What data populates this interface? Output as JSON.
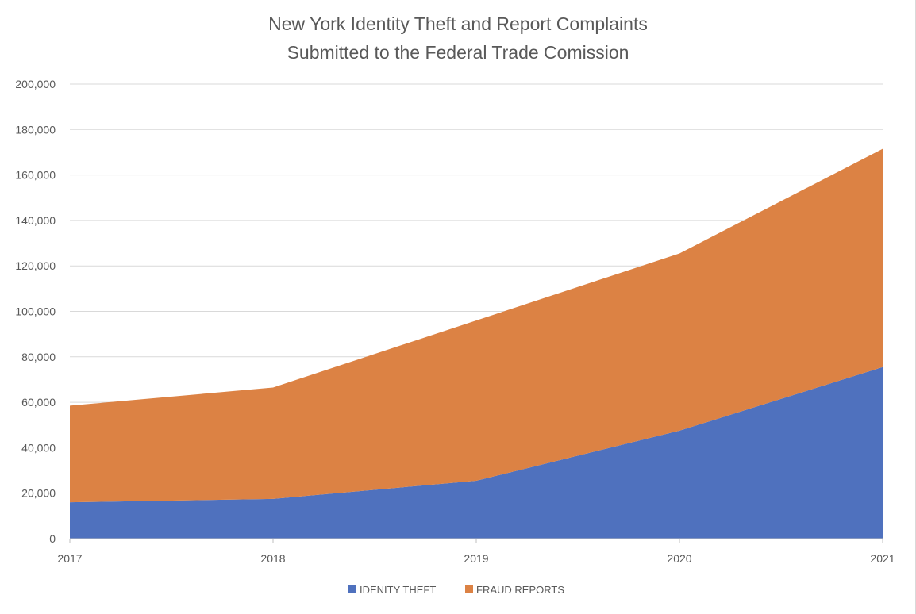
{
  "chart_data": {
    "type": "area",
    "stacked": true,
    "title_lines": [
      "New York Identity Theft and Report Complaints",
      "Submitted to the Federal Trade Comission"
    ],
    "x": [
      "2017",
      "2018",
      "2019",
      "2020",
      "2021"
    ],
    "series": [
      {
        "name": "IDENITY THEFT",
        "color": "#4f71be",
        "values": [
          16000,
          17500,
          25500,
          47500,
          75500
        ]
      },
      {
        "name": "FRAUD REPORTS",
        "color": "#dc8244",
        "values": [
          42500,
          49000,
          70500,
          78000,
          96000
        ]
      }
    ],
    "ylim": [
      0,
      200000
    ],
    "yticks": [
      0,
      20000,
      40000,
      60000,
      80000,
      100000,
      120000,
      140000,
      160000,
      180000,
      200000
    ],
    "ytick_labels": [
      "0",
      "20,000",
      "40,000",
      "60,000",
      "80,000",
      "100,000",
      "120,000",
      "140,000",
      "160,000",
      "180,000",
      "200,000"
    ],
    "grid": true,
    "legend_position": "bottom",
    "gridline_color": "#d9d9d9"
  }
}
